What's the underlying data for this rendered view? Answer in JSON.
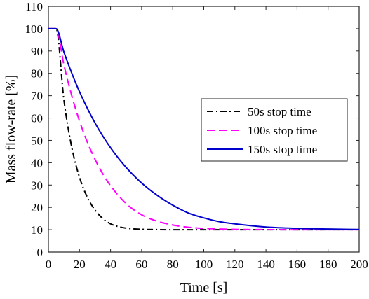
{
  "chart_data": {
    "type": "line",
    "title": "",
    "xlabel": "Time [s]",
    "ylabel": "Mass flow-rate [%]",
    "xlim": [
      0,
      200
    ],
    "ylim": [
      0,
      110
    ],
    "xticks": [
      0,
      20,
      40,
      60,
      80,
      100,
      120,
      140,
      160,
      180,
      200
    ],
    "yticks": [
      0,
      10,
      20,
      30,
      40,
      50,
      60,
      70,
      80,
      90,
      100,
      110
    ],
    "grid": false,
    "legend_position": "right",
    "series": [
      {
        "name": "50s stop time",
        "color": "#000000",
        "dash": "dash-dot",
        "x": [
          0,
          5,
          10,
          15,
          20,
          25,
          30,
          35,
          40,
          45,
          50,
          60,
          70,
          80,
          100,
          150,
          200
        ],
        "y": [
          100,
          100,
          68,
          47,
          33.5,
          24.6,
          18.8,
          15,
          12.6,
          11.4,
          10.7,
          10.2,
          10.05,
          10,
          10,
          10,
          10
        ]
      },
      {
        "name": "100s stop time",
        "color": "#ff00ff",
        "dash": "dashed",
        "x": [
          0,
          5,
          10,
          15,
          20,
          25,
          30,
          35,
          40,
          50,
          60,
          70,
          80,
          90,
          100,
          120,
          140,
          160,
          200
        ],
        "y": [
          100,
          100,
          83.7,
          70.1,
          58.7,
          49.3,
          41.5,
          35,
          29.7,
          21.7,
          16.7,
          13.8,
          12.1,
          11.1,
          10.6,
          10.15,
          10.04,
          10,
          10
        ]
      },
      {
        "name": "150s stop time",
        "color": "#0000cc",
        "dash": "solid",
        "x": [
          0,
          5,
          10,
          15,
          20,
          30,
          40,
          50,
          60,
          70,
          80,
          90,
          100,
          110,
          120,
          140,
          160,
          180,
          200
        ],
        "y": [
          100,
          100,
          89.5,
          80.2,
          71.8,
          57.8,
          46.7,
          37.9,
          30.9,
          25.4,
          21,
          17.5,
          15.3,
          13.6,
          12.6,
          11.2,
          10.6,
          10.3,
          10.1
        ]
      }
    ]
  }
}
